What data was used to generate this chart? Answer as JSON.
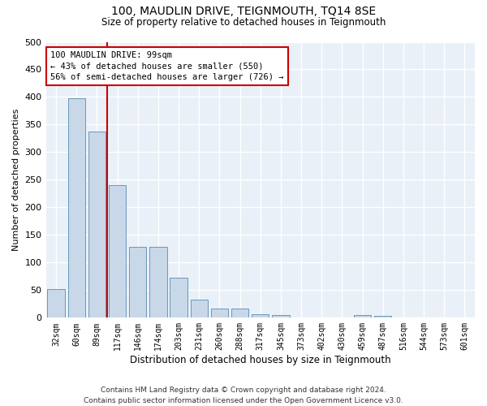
{
  "title": "100, MAUDLIN DRIVE, TEIGNMOUTH, TQ14 8SE",
  "subtitle": "Size of property relative to detached houses in Teignmouth",
  "xlabel": "Distribution of detached houses by size in Teignmouth",
  "ylabel": "Number of detached properties",
  "bar_color": "#c8d8e8",
  "bar_edge_color": "#6699bb",
  "background_color": "#eaf0f8",
  "grid_color": "#ffffff",
  "vline_color": "#cc0000",
  "annotation_box_color": "#cc0000",
  "categories": [
    "32sqm",
    "60sqm",
    "89sqm",
    "117sqm",
    "146sqm",
    "174sqm",
    "203sqm",
    "231sqm",
    "260sqm",
    "288sqm",
    "317sqm",
    "345sqm",
    "373sqm",
    "402sqm",
    "430sqm",
    "459sqm",
    "487sqm",
    "516sqm",
    "544sqm",
    "573sqm",
    "601sqm"
  ],
  "values": [
    52,
    398,
    337,
    241,
    128,
    128,
    72,
    33,
    16,
    16,
    6,
    5,
    0,
    0,
    0,
    5,
    4,
    0,
    0,
    0,
    1
  ],
  "annotation_line1": "100 MAUDLIN DRIVE: 99sqm",
  "annotation_line2": "← 43% of detached houses are smaller (550)",
  "annotation_line3": "56% of semi-detached houses are larger (726) →",
  "footer_line1": "Contains HM Land Registry data © Crown copyright and database right 2024.",
  "footer_line2": "Contains public sector information licensed under the Open Government Licence v3.0.",
  "ylim": [
    0,
    500
  ],
  "yticks": [
    0,
    50,
    100,
    150,
    200,
    250,
    300,
    350,
    400,
    450,
    500
  ],
  "vline_index": 2.5
}
